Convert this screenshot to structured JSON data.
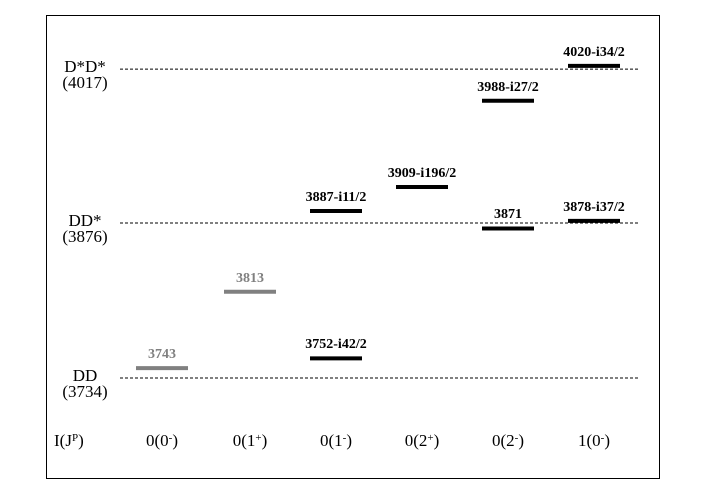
{
  "thresholds": [
    {
      "name": "DD",
      "mass": "(3734)",
      "energy": 3734
    },
    {
      "name": "DD*",
      "mass": "(3876)",
      "energy": 3876
    },
    {
      "name": "D*D*",
      "mass": "(4017)",
      "energy": 4017
    }
  ],
  "axis_label": {
    "main": "I(J",
    "sup": "P",
    "close": ")"
  },
  "columns": [
    {
      "label": "0(0",
      "sup": "-",
      "close": ")"
    },
    {
      "label": "0(1",
      "sup": "+",
      "close": ")"
    },
    {
      "label": "0(1",
      "sup": "-",
      "close": ")"
    },
    {
      "label": "0(2",
      "sup": "+",
      "close": ")"
    },
    {
      "label": "0(2",
      "sup": "-",
      "close": ")"
    },
    {
      "label": "1(0",
      "sup": "-",
      "close": ")"
    }
  ],
  "levels": [
    {
      "column": 0,
      "energy": 3743,
      "label": "3743",
      "color": "#808080"
    },
    {
      "column": 1,
      "energy": 3813,
      "label": "3813",
      "color": "#808080"
    },
    {
      "column": 2,
      "energy": 3752,
      "label": "3752-i42/2",
      "color": "#000000"
    },
    {
      "column": 2,
      "energy": 3887,
      "label": "3887-i11/2",
      "color": "#000000"
    },
    {
      "column": 3,
      "energy": 3909,
      "label": "3909-i196/2",
      "color": "#000000"
    },
    {
      "column": 4,
      "energy": 3871,
      "label": "3871",
      "color": "#000000"
    },
    {
      "column": 4,
      "energy": 3988,
      "label": "3988-i27/2",
      "color": "#000000"
    },
    {
      "column": 5,
      "energy": 3878,
      "label": "3878-i37/2",
      "color": "#000000"
    },
    {
      "column": 5,
      "energy": 4020,
      "label": "4020-i34/2",
      "color": "#000000"
    }
  ]
}
